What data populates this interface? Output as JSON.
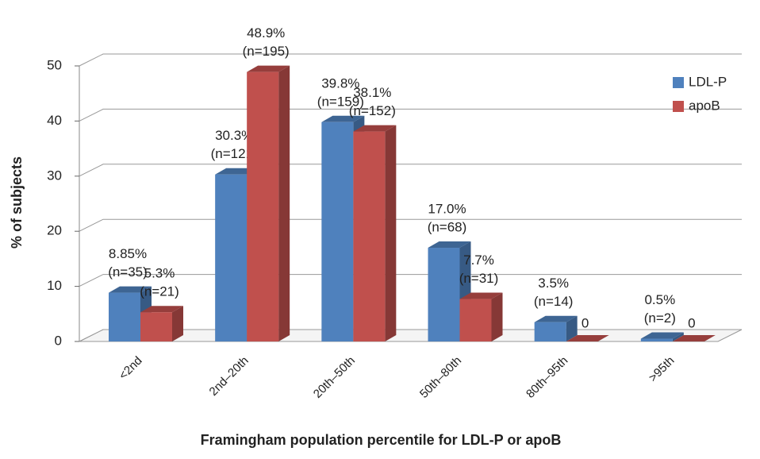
{
  "chart_data": {
    "type": "bar3d",
    "x_label": "Framingham population percentile for LDL-P or apoB",
    "y_label": "% of subjects",
    "categories": [
      "<2nd",
      "2nd–20th",
      "20th–50th",
      "50th–80th",
      "80th–95th",
      ">95th"
    ],
    "series": [
      {
        "name": "LDL-P",
        "color": "#4f81bd",
        "values": [
          8.85,
          30.3,
          39.8,
          17.0,
          3.5,
          0.5
        ],
        "value_labels": [
          "8.85%",
          "30.3%",
          "39.8%",
          "17.0%",
          "3.5%",
          "0.5%"
        ],
        "count_labels": [
          "(n=35)",
          "(n=121)",
          "(n=159)",
          "(n=68)",
          "(n=14)",
          "(n=2)"
        ]
      },
      {
        "name": "apoB",
        "color": "#c0504d",
        "values": [
          5.3,
          48.9,
          38.1,
          7.7,
          0,
          0
        ],
        "value_labels": [
          "5.3%",
          "48.9%",
          "38.1%",
          "7.7%",
          "0",
          "0"
        ],
        "count_labels": [
          "(n=21)",
          "(n=195)",
          "(n=152)",
          "(n=31)",
          null,
          null
        ]
      }
    ],
    "ylim": [
      0,
      50
    ],
    "yticks": [
      0,
      10,
      20,
      30,
      40,
      50
    ],
    "grid": true,
    "legend": "top-right"
  }
}
